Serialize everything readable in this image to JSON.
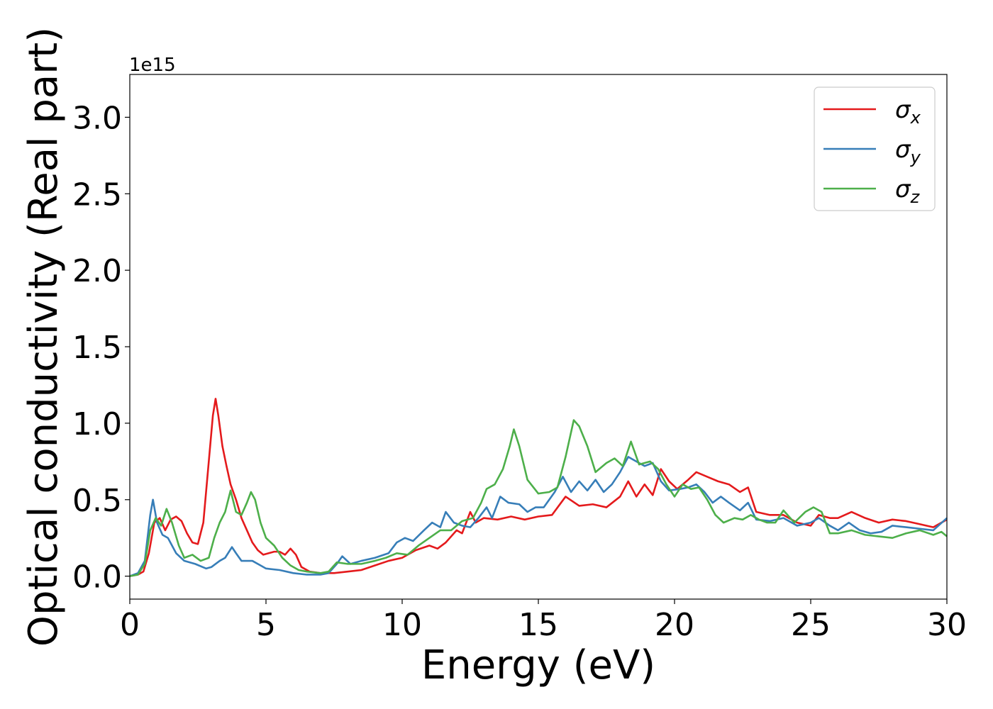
{
  "chart_data": {
    "type": "line",
    "title": "",
    "xlabel": "Energy (eV)",
    "ylabel": "Optical conductivity (Real part)",
    "offset_label": "1e15",
    "xlim": [
      0,
      30
    ],
    "ylim": [
      -0.15,
      3.28
    ],
    "xticks": [
      0,
      5,
      10,
      15,
      20,
      25,
      30
    ],
    "xtick_labels": [
      "0",
      "5",
      "10",
      "15",
      "20",
      "25",
      "30"
    ],
    "yticks": [
      0.0,
      0.5,
      1.0,
      1.5,
      2.0,
      2.5,
      3.0
    ],
    "ytick_labels": [
      "0.0",
      "0.5",
      "1.0",
      "1.5",
      "2.0",
      "2.5",
      "3.0"
    ],
    "grid": false,
    "legend_position": "top-right",
    "series": [
      {
        "name": "σx",
        "name_base": "σ",
        "name_sub": "x",
        "color": "#e41a1c",
        "points": [
          [
            0,
            0.0
          ],
          [
            0.3,
            0.01
          ],
          [
            0.5,
            0.03
          ],
          [
            0.7,
            0.15
          ],
          [
            0.9,
            0.35
          ],
          [
            1.1,
            0.38
          ],
          [
            1.3,
            0.3
          ],
          [
            1.5,
            0.37
          ],
          [
            1.7,
            0.39
          ],
          [
            1.9,
            0.36
          ],
          [
            2.1,
            0.28
          ],
          [
            2.3,
            0.22
          ],
          [
            2.5,
            0.21
          ],
          [
            2.7,
            0.35
          ],
          [
            2.9,
            0.75
          ],
          [
            3.05,
            1.05
          ],
          [
            3.15,
            1.16
          ],
          [
            3.25,
            1.05
          ],
          [
            3.4,
            0.85
          ],
          [
            3.55,
            0.72
          ],
          [
            3.7,
            0.6
          ],
          [
            3.9,
            0.5
          ],
          [
            4.1,
            0.38
          ],
          [
            4.3,
            0.3
          ],
          [
            4.5,
            0.22
          ],
          [
            4.7,
            0.17
          ],
          [
            4.9,
            0.14
          ],
          [
            5.1,
            0.15
          ],
          [
            5.3,
            0.16
          ],
          [
            5.5,
            0.16
          ],
          [
            5.7,
            0.14
          ],
          [
            5.9,
            0.18
          ],
          [
            6.1,
            0.14
          ],
          [
            6.3,
            0.06
          ],
          [
            6.6,
            0.03
          ],
          [
            7.0,
            0.02
          ],
          [
            7.5,
            0.02
          ],
          [
            8.0,
            0.03
          ],
          [
            8.5,
            0.04
          ],
          [
            9.0,
            0.07
          ],
          [
            9.5,
            0.1
          ],
          [
            10.0,
            0.12
          ],
          [
            10.5,
            0.17
          ],
          [
            11.0,
            0.2
          ],
          [
            11.3,
            0.18
          ],
          [
            11.6,
            0.22
          ],
          [
            12.0,
            0.3
          ],
          [
            12.2,
            0.28
          ],
          [
            12.5,
            0.42
          ],
          [
            12.7,
            0.35
          ],
          [
            13.0,
            0.38
          ],
          [
            13.5,
            0.37
          ],
          [
            14.0,
            0.39
          ],
          [
            14.5,
            0.37
          ],
          [
            15.0,
            0.39
          ],
          [
            15.5,
            0.4
          ],
          [
            16.0,
            0.52
          ],
          [
            16.5,
            0.46
          ],
          [
            17.0,
            0.47
          ],
          [
            17.5,
            0.45
          ],
          [
            18.0,
            0.52
          ],
          [
            18.3,
            0.62
          ],
          [
            18.6,
            0.52
          ],
          [
            18.9,
            0.6
          ],
          [
            19.2,
            0.53
          ],
          [
            19.5,
            0.7
          ],
          [
            19.8,
            0.62
          ],
          [
            20.1,
            0.57
          ],
          [
            20.5,
            0.63
          ],
          [
            20.8,
            0.68
          ],
          [
            21.2,
            0.65
          ],
          [
            21.6,
            0.62
          ],
          [
            22.0,
            0.6
          ],
          [
            22.4,
            0.55
          ],
          [
            22.7,
            0.58
          ],
          [
            23.0,
            0.42
          ],
          [
            23.5,
            0.4
          ],
          [
            24.0,
            0.4
          ],
          [
            24.5,
            0.35
          ],
          [
            25.0,
            0.33
          ],
          [
            25.3,
            0.4
          ],
          [
            25.7,
            0.38
          ],
          [
            26.0,
            0.38
          ],
          [
            26.5,
            0.42
          ],
          [
            27.0,
            0.38
          ],
          [
            27.5,
            0.35
          ],
          [
            28.0,
            0.37
          ],
          [
            28.5,
            0.36
          ],
          [
            29.0,
            0.34
          ],
          [
            29.5,
            0.32
          ],
          [
            30.0,
            0.37
          ]
        ]
      },
      {
        "name": "σy",
        "name_base": "σ",
        "name_sub": "y",
        "color": "#377eb8",
        "points": [
          [
            0,
            0.0
          ],
          [
            0.3,
            0.02
          ],
          [
            0.55,
            0.1
          ],
          [
            0.75,
            0.4
          ],
          [
            0.85,
            0.5
          ],
          [
            1.0,
            0.35
          ],
          [
            1.2,
            0.27
          ],
          [
            1.4,
            0.25
          ],
          [
            1.7,
            0.15
          ],
          [
            2.0,
            0.1
          ],
          [
            2.4,
            0.08
          ],
          [
            2.8,
            0.05
          ],
          [
            3.0,
            0.06
          ],
          [
            3.3,
            0.1
          ],
          [
            3.5,
            0.12
          ],
          [
            3.75,
            0.19
          ],
          [
            3.9,
            0.15
          ],
          [
            4.1,
            0.1
          ],
          [
            4.5,
            0.1
          ],
          [
            4.8,
            0.07
          ],
          [
            5.0,
            0.05
          ],
          [
            5.5,
            0.04
          ],
          [
            6.0,
            0.02
          ],
          [
            6.5,
            0.01
          ],
          [
            7.0,
            0.01
          ],
          [
            7.3,
            0.02
          ],
          [
            7.6,
            0.08
          ],
          [
            7.8,
            0.13
          ],
          [
            8.1,
            0.08
          ],
          [
            8.5,
            0.1
          ],
          [
            9.0,
            0.12
          ],
          [
            9.5,
            0.15
          ],
          [
            9.8,
            0.22
          ],
          [
            10.1,
            0.25
          ],
          [
            10.4,
            0.23
          ],
          [
            10.8,
            0.3
          ],
          [
            11.1,
            0.35
          ],
          [
            11.4,
            0.32
          ],
          [
            11.6,
            0.42
          ],
          [
            11.9,
            0.35
          ],
          [
            12.2,
            0.33
          ],
          [
            12.5,
            0.32
          ],
          [
            12.8,
            0.38
          ],
          [
            13.1,
            0.45
          ],
          [
            13.3,
            0.38
          ],
          [
            13.6,
            0.52
          ],
          [
            13.9,
            0.48
          ],
          [
            14.3,
            0.47
          ],
          [
            14.6,
            0.42
          ],
          [
            14.9,
            0.45
          ],
          [
            15.2,
            0.45
          ],
          [
            15.6,
            0.55
          ],
          [
            15.9,
            0.65
          ],
          [
            16.2,
            0.55
          ],
          [
            16.5,
            0.62
          ],
          [
            16.8,
            0.56
          ],
          [
            17.1,
            0.63
          ],
          [
            17.4,
            0.55
          ],
          [
            17.7,
            0.6
          ],
          [
            18.0,
            0.68
          ],
          [
            18.3,
            0.78
          ],
          [
            18.6,
            0.75
          ],
          [
            18.9,
            0.72
          ],
          [
            19.2,
            0.74
          ],
          [
            19.5,
            0.62
          ],
          [
            19.8,
            0.56
          ],
          [
            20.2,
            0.57
          ],
          [
            20.5,
            0.58
          ],
          [
            20.8,
            0.6
          ],
          [
            21.1,
            0.55
          ],
          [
            21.4,
            0.48
          ],
          [
            21.7,
            0.52
          ],
          [
            22.0,
            0.48
          ],
          [
            22.4,
            0.43
          ],
          [
            22.7,
            0.48
          ],
          [
            23.0,
            0.37
          ],
          [
            23.5,
            0.36
          ],
          [
            24.0,
            0.38
          ],
          [
            24.5,
            0.33
          ],
          [
            25.0,
            0.35
          ],
          [
            25.3,
            0.38
          ],
          [
            25.7,
            0.33
          ],
          [
            26.0,
            0.3
          ],
          [
            26.4,
            0.35
          ],
          [
            26.8,
            0.3
          ],
          [
            27.2,
            0.28
          ],
          [
            27.6,
            0.29
          ],
          [
            28.0,
            0.33
          ],
          [
            28.5,
            0.32
          ],
          [
            29.0,
            0.31
          ],
          [
            29.5,
            0.3
          ],
          [
            30.0,
            0.38
          ]
        ]
      },
      {
        "name": "σz",
        "name_base": "σ",
        "name_sub": "z",
        "color": "#4daf4a",
        "points": [
          [
            0,
            0.0
          ],
          [
            0.3,
            0.01
          ],
          [
            0.55,
            0.08
          ],
          [
            0.75,
            0.3
          ],
          [
            0.95,
            0.38
          ],
          [
            1.15,
            0.33
          ],
          [
            1.35,
            0.44
          ],
          [
            1.55,
            0.35
          ],
          [
            1.8,
            0.2
          ],
          [
            2.0,
            0.12
          ],
          [
            2.3,
            0.14
          ],
          [
            2.6,
            0.1
          ],
          [
            2.9,
            0.12
          ],
          [
            3.1,
            0.25
          ],
          [
            3.3,
            0.35
          ],
          [
            3.5,
            0.42
          ],
          [
            3.7,
            0.56
          ],
          [
            3.9,
            0.42
          ],
          [
            4.1,
            0.4
          ],
          [
            4.3,
            0.48
          ],
          [
            4.45,
            0.55
          ],
          [
            4.6,
            0.5
          ],
          [
            4.8,
            0.35
          ],
          [
            5.0,
            0.25
          ],
          [
            5.3,
            0.2
          ],
          [
            5.6,
            0.12
          ],
          [
            5.9,
            0.07
          ],
          [
            6.2,
            0.04
          ],
          [
            6.5,
            0.03
          ],
          [
            7.0,
            0.02
          ],
          [
            7.3,
            0.03
          ],
          [
            7.6,
            0.09
          ],
          [
            8.0,
            0.08
          ],
          [
            8.5,
            0.08
          ],
          [
            9.0,
            0.1
          ],
          [
            9.4,
            0.12
          ],
          [
            9.8,
            0.15
          ],
          [
            10.2,
            0.14
          ],
          [
            10.6,
            0.2
          ],
          [
            11.0,
            0.25
          ],
          [
            11.4,
            0.3
          ],
          [
            11.8,
            0.3
          ],
          [
            12.2,
            0.36
          ],
          [
            12.6,
            0.38
          ],
          [
            12.9,
            0.48
          ],
          [
            13.1,
            0.57
          ],
          [
            13.4,
            0.6
          ],
          [
            13.7,
            0.7
          ],
          [
            13.95,
            0.85
          ],
          [
            14.1,
            0.96
          ],
          [
            14.3,
            0.85
          ],
          [
            14.6,
            0.63
          ],
          [
            15.0,
            0.54
          ],
          [
            15.4,
            0.55
          ],
          [
            15.7,
            0.58
          ],
          [
            16.0,
            0.78
          ],
          [
            16.3,
            1.02
          ],
          [
            16.5,
            0.98
          ],
          [
            16.8,
            0.85
          ],
          [
            17.1,
            0.68
          ],
          [
            17.5,
            0.74
          ],
          [
            17.8,
            0.77
          ],
          [
            18.1,
            0.72
          ],
          [
            18.4,
            0.88
          ],
          [
            18.7,
            0.73
          ],
          [
            19.1,
            0.75
          ],
          [
            19.4,
            0.7
          ],
          [
            19.7,
            0.6
          ],
          [
            20.0,
            0.52
          ],
          [
            20.3,
            0.6
          ],
          [
            20.6,
            0.57
          ],
          [
            20.9,
            0.58
          ],
          [
            21.2,
            0.5
          ],
          [
            21.5,
            0.4
          ],
          [
            21.8,
            0.35
          ],
          [
            22.2,
            0.38
          ],
          [
            22.5,
            0.37
          ],
          [
            22.8,
            0.4
          ],
          [
            23.1,
            0.37
          ],
          [
            23.4,
            0.35
          ],
          [
            23.7,
            0.35
          ],
          [
            24.0,
            0.43
          ],
          [
            24.4,
            0.35
          ],
          [
            24.8,
            0.42
          ],
          [
            25.1,
            0.45
          ],
          [
            25.4,
            0.42
          ],
          [
            25.7,
            0.28
          ],
          [
            26.0,
            0.28
          ],
          [
            26.5,
            0.3
          ],
          [
            27.0,
            0.27
          ],
          [
            27.5,
            0.26
          ],
          [
            28.0,
            0.25
          ],
          [
            28.5,
            0.28
          ],
          [
            29.0,
            0.3
          ],
          [
            29.5,
            0.27
          ],
          [
            29.8,
            0.29
          ],
          [
            30.0,
            0.26
          ]
        ]
      }
    ]
  }
}
